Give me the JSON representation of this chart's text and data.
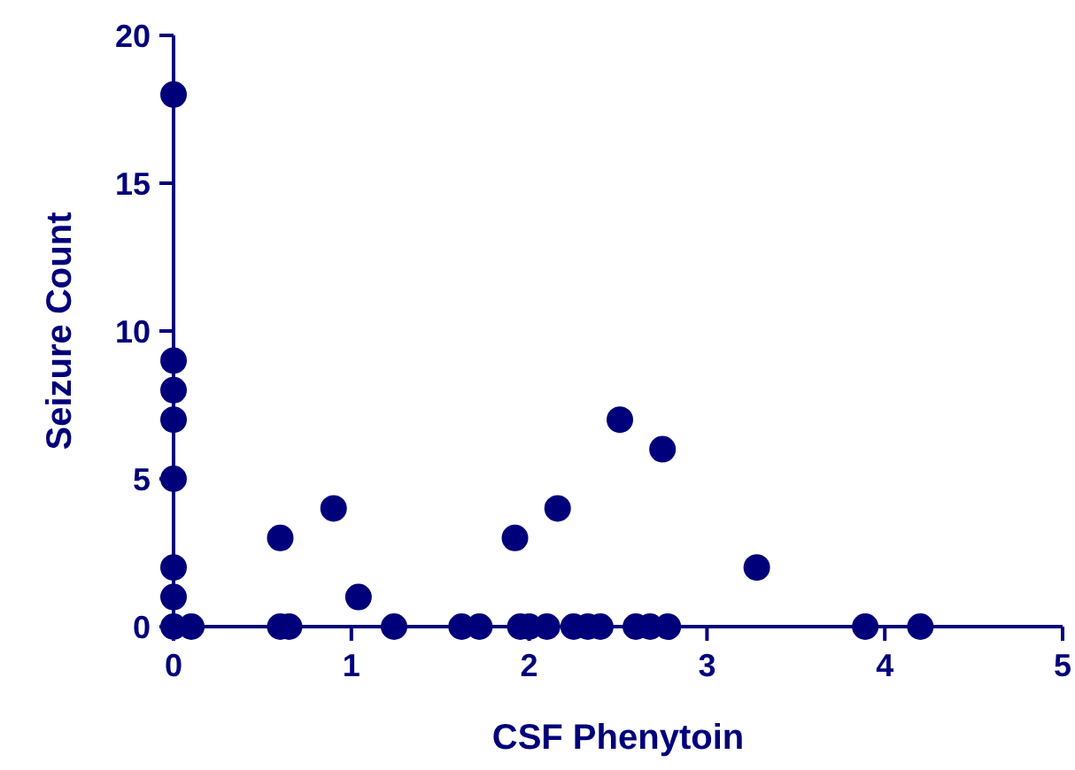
{
  "chart_data": {
    "type": "scatter",
    "xlabel": "CSF Phenytoin",
    "ylabel": "Seizure Count",
    "marker": "circle",
    "grid": false,
    "xlim": [
      0,
      5
    ],
    "xticks": [
      0,
      1,
      2,
      3,
      4,
      5
    ],
    "ylim": [
      0,
      20
    ],
    "yticks": [
      0,
      5,
      10,
      15,
      20
    ],
    "series": [
      {
        "color": "#00007a",
        "x": [
          0,
          0,
          0,
          0,
          0,
          0,
          0,
          0,
          0.1,
          0.6,
          0.6,
          0.65,
          0.9,
          1.04,
          1.24,
          1.62,
          1.72,
          1.92,
          1.95,
          2.0,
          2.1,
          2.16,
          2.25,
          2.33,
          2.4,
          2.51,
          2.6,
          2.68,
          2.75,
          2.78,
          3.28,
          3.89,
          4.2
        ],
        "values": [
          18,
          9,
          8,
          7,
          5,
          2,
          1,
          0,
          0,
          3,
          0,
          0,
          4,
          1,
          0,
          0,
          0,
          3,
          0,
          0,
          0,
          4,
          0,
          0,
          0,
          7,
          0,
          0,
          6,
          0,
          2,
          0,
          0
        ]
      }
    ]
  }
}
